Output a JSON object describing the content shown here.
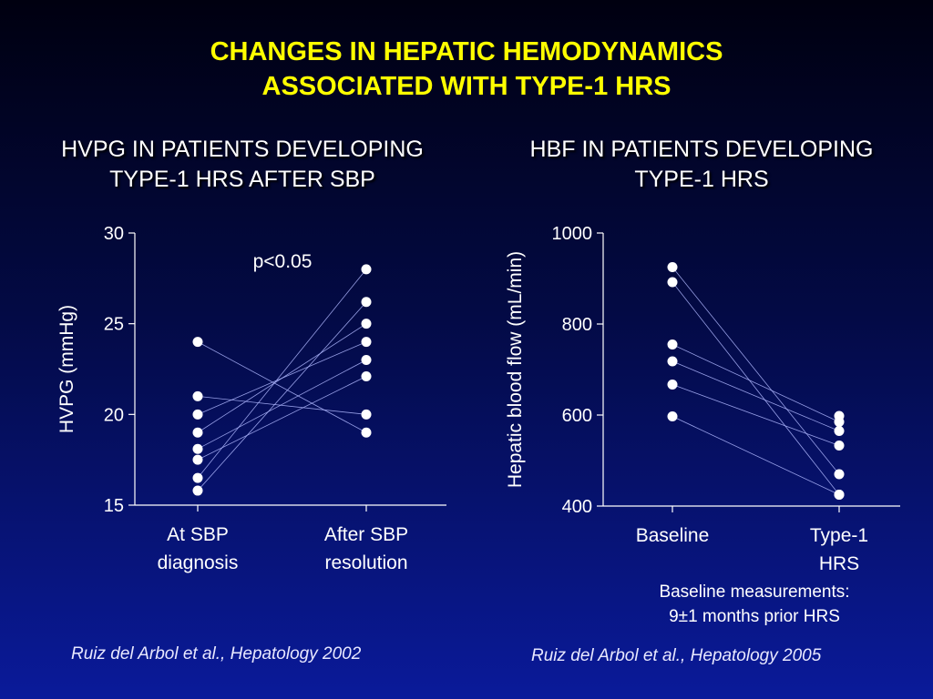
{
  "title": {
    "line1": "CHANGES IN HEPATIC HEMODYNAMICS",
    "line2": "ASSOCIATED WITH TYPE-1 HRS"
  },
  "left_panel": {
    "subtitle_line1": "HVPG IN PATIENTS DEVELOPING",
    "subtitle_line2": "TYPE-1 HRS AFTER SBP",
    "reference": "Ruiz del Arbol et al., Hepatology 2002"
  },
  "right_panel": {
    "subtitle_line1": "HBF IN PATIENTS DEVELOPING",
    "subtitle_line2": "TYPE-1 HRS",
    "reference": "Ruiz del Arbol et al., Hepatology 2005",
    "note_line1": "Baseline measurements:",
    "note_line2": "9±1 months prior HRS"
  },
  "colors": {
    "title": "#ffff00",
    "points": "#ffffff",
    "lines": "#b0b8ff"
  },
  "chart_data": [
    {
      "type": "scatter",
      "ylabel": "HVPG (mmHg)",
      "ylim": [
        15,
        30
      ],
      "yticks": [
        15,
        20,
        25,
        30
      ],
      "categories": [
        [
          "At SBP",
          "diagnosis"
        ],
        [
          "After SBP",
          "resolution"
        ]
      ],
      "annotation": "p<0.05",
      "pairs": [
        [
          24.0,
          19.0
        ],
        [
          21.0,
          20.0
        ],
        [
          20.0,
          24.0
        ],
        [
          19.0,
          25.0
        ],
        [
          18.1,
          23.0
        ],
        [
          17.5,
          22.1
        ],
        [
          16.5,
          28.0
        ],
        [
          15.8,
          26.2
        ]
      ]
    },
    {
      "type": "scatter",
      "ylabel": "Hepatic blood flow (mL/min)",
      "ylim": [
        400,
        1000
      ],
      "yticks": [
        400,
        600,
        800,
        1000
      ],
      "categories": [
        [
          "Baseline"
        ],
        [
          "Type-1",
          "HRS"
        ]
      ],
      "pairs": [
        [
          925,
          470
        ],
        [
          892,
          425
        ],
        [
          755,
          585
        ],
        [
          718,
          565
        ],
        [
          667,
          533
        ],
        [
          597,
          425
        ]
      ],
      "extra_points": [
        [
          1,
          598
        ]
      ]
    }
  ]
}
